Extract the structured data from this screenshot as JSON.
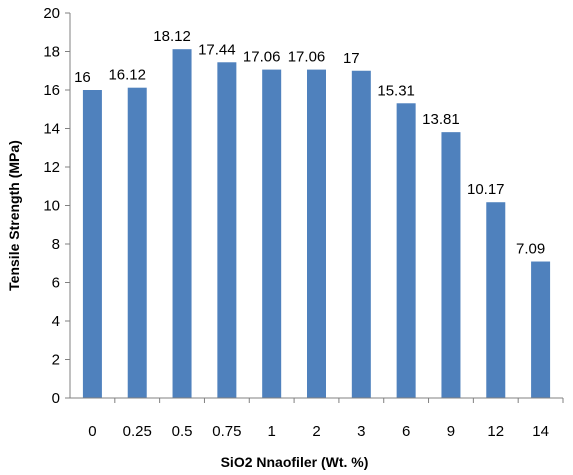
{
  "chart_data": {
    "type": "bar",
    "categories": [
      "0",
      "0.25",
      "0.5",
      "0.75",
      "1",
      "2",
      "3",
      "6",
      "9",
      "12",
      "14"
    ],
    "values": [
      16,
      16.12,
      18.12,
      17.44,
      17.06,
      17.06,
      17,
      15.31,
      13.81,
      10.17,
      7.09
    ],
    "data_labels": [
      "16",
      "16.12",
      "18.12",
      "17.44",
      "17.06",
      "17.06",
      "17",
      "15.31",
      "13.81",
      "10.17",
      "7.09"
    ],
    "title": "",
    "xlabel": "SiO2 Nnaofiler  (Wt. %)",
    "ylabel": "Tensile Strength (MPa)",
    "ylim": [
      0,
      20
    ],
    "yticks": [
      "0",
      "2",
      "4",
      "6",
      "8",
      "10",
      "12",
      "14",
      "16",
      "18",
      "20"
    ],
    "grid": false,
    "legend": "none",
    "bar_color": "#4f81bd"
  }
}
